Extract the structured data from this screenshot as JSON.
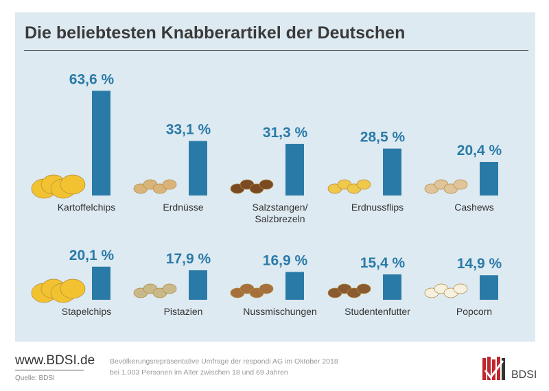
{
  "chart_data": {
    "type": "bar",
    "title": "Die beliebtesten Knabberartikel der Deutschen",
    "categories": [
      "Kartoffelchips",
      "Erdnüsse",
      "Salzstangen/\nSalzbrezeln",
      "Erdnussflips",
      "Cashews",
      "Stapelchips",
      "Pistazien",
      "Nussmischungen",
      "Studentenfutter",
      "Popcorn"
    ],
    "values": [
      63.6,
      33.1,
      31.3,
      28.5,
      20.4,
      20.1,
      17.9,
      16.9,
      15.4,
      14.9
    ],
    "value_labels": [
      "63,6 %",
      "33,1 %",
      "31,3 %",
      "28,5 %",
      "20,4 %",
      "20,1 %",
      "17,9 %",
      "16,9 %",
      "15,4 %",
      "14,9 %"
    ],
    "unit": "%",
    "layout": "two rows of five",
    "bar_color": "#2a7aa8",
    "grid": false
  },
  "footer": {
    "url": "www.BDSI.de",
    "source": "Quelle: BDSI",
    "note_line1": "Bevölkerungsrepräsentative Umfrage der respondi AG im Oktober 2018",
    "note_line2": "bei 1.003 Personen im Alter zwischen 18 und 69 Jahren",
    "logo_text": "BDSI"
  }
}
